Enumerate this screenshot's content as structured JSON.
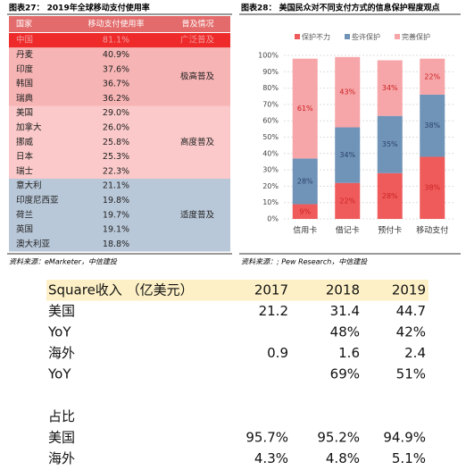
{
  "figure27": {
    "title": "图表27： 2019年全球移动支付使用率",
    "header": [
      "国家",
      "移动支付使用率",
      "普及情况"
    ],
    "groups": [
      {
        "label": "广泛普及",
        "color": "#ee2a2a",
        "rows": [
          [
            "中国",
            "81.1%"
          ]
        ]
      },
      {
        "label": "极高普及",
        "color": "#f7b4b4",
        "rows": [
          [
            "丹麦",
            "40.9%"
          ],
          [
            "印度",
            "37.6%"
          ],
          [
            "韩国",
            "36.7%"
          ],
          [
            "瑞典",
            "36.2%"
          ]
        ]
      },
      {
        "label": "高度普及",
        "color": "#fbc9c9",
        "rows": [
          [
            "美国",
            "29.0%"
          ],
          [
            "加拿大",
            "26.0%"
          ],
          [
            "挪威",
            "25.8%"
          ],
          [
            "日本",
            "25.3%"
          ],
          [
            "瑞士",
            "22.3%"
          ]
        ]
      },
      {
        "label": "适度普及",
        "color": "#b9c8d9",
        "rows": [
          [
            "意大利",
            "21.1%"
          ],
          [
            "印度尼西亚",
            "19.8%"
          ],
          [
            "荷兰",
            "19.7%"
          ],
          [
            "英国",
            "19.1%"
          ],
          [
            "澳大利亚",
            "18.8%"
          ]
        ]
      }
    ],
    "source": "资料来源：eMarketer，中信建投"
  },
  "chart_data": {
    "type": "bar",
    "stacked": true,
    "title": "图表28： 美国民众对不同支付方式的信息保护程度观点",
    "categories": [
      "信用卡",
      "借记卡",
      "预付卡",
      "移动支付"
    ],
    "series": [
      {
        "name": "保护不力",
        "color": "#ef5b5b",
        "values": [
          9,
          22,
          28,
          38
        ],
        "value_labels": [
          "9%",
          "22%",
          "28%",
          "38%"
        ]
      },
      {
        "name": "些许保护",
        "color": "#7093b8",
        "values": [
          28,
          34,
          35,
          38
        ],
        "value_labels": [
          "28%",
          "34%",
          "35%",
          "38%"
        ]
      },
      {
        "name": "完善保护",
        "color": "#f6a5a8",
        "values": [
          61,
          43,
          34,
          22
        ],
        "value_labels": [
          "61%",
          "43%",
          "34%",
          "22%"
        ]
      }
    ],
    "ylim": [
      0,
      100
    ],
    "yticks": [
      {
        "value": 0,
        "label": "0%"
      },
      {
        "value": 10,
        "label": "10%"
      },
      {
        "value": 20,
        "label": "20%"
      },
      {
        "value": 30,
        "label": "30%"
      },
      {
        "value": 40,
        "label": "40%"
      },
      {
        "value": 50,
        "label": "50%"
      },
      {
        "value": 60,
        "label": "60%"
      },
      {
        "value": 70,
        "label": "70%"
      },
      {
        "value": 80,
        "label": "80%"
      },
      {
        "value": 90,
        "label": "90%"
      },
      {
        "value": 100,
        "label": "100%"
      }
    ],
    "grid": true,
    "legend": "top",
    "source": "资料来源：; Pew Research，中信建投"
  },
  "square": {
    "header": [
      "Square收入 （亿美元）",
      "2017",
      "2018",
      "2019"
    ],
    "rows": [
      [
        "美国",
        "21.2",
        "31.4",
        "44.7"
      ],
      [
        "YoY",
        null,
        "48%",
        "42%"
      ],
      [
        "海外",
        "0.9",
        "1.6",
        "2.4"
      ],
      [
        "YoY",
        null,
        "69%",
        "51%"
      ],
      [
        null,
        null,
        null,
        null
      ],
      [
        "占比",
        null,
        null,
        null
      ],
      [
        "美国",
        "95.7%",
        "95.2%",
        "94.9%"
      ],
      [
        "海外",
        "4.3%",
        "4.8%",
        "5.1%"
      ]
    ]
  }
}
